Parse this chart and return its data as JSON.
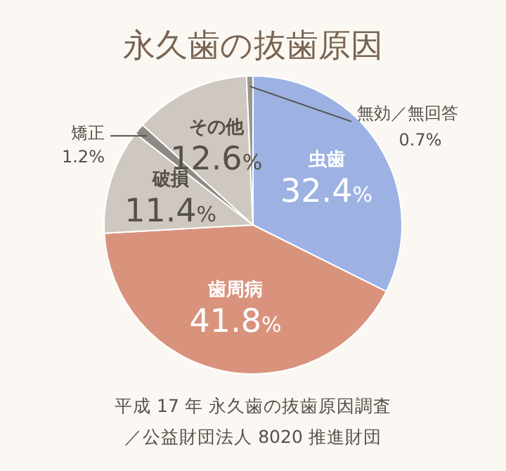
{
  "chart_data": {
    "type": "pie",
    "title": "永久歯の抜歯原因",
    "categories": [
      "虫歯",
      "歯周病",
      "破損",
      "矯正",
      "その他",
      "無効／無回答"
    ],
    "values": [
      32.4,
      41.8,
      11.4,
      1.2,
      12.6,
      0.7
    ],
    "colors": [
      "#9db2e3",
      "#d9937d",
      "#cfc8c1",
      "#8e8984",
      "#cfc8c1",
      "#9a958f"
    ],
    "value_labels": [
      "32.4%",
      "41.8%",
      "11.4%",
      "1.2%",
      "12.6%",
      "0.7%"
    ],
    "annotations": [
      "平成 17 年 永久歯の抜歯原因調査",
      "／公益財団法人 8020 推進財団"
    ]
  }
}
